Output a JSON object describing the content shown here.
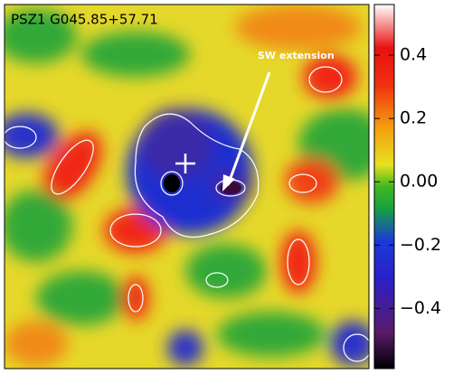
{
  "title": "PSZ1 G045.85+57.71",
  "annotation": "SW extension",
  "colorbar": {
    "lim": [
      -0.59,
      0.56
    ],
    "ticks": [
      {
        "value": -0.4,
        "label": "−0.4"
      },
      {
        "value": -0.2,
        "label": "−0.2"
      },
      {
        "value": 0,
        "label": "0.00"
      },
      0.2,
      0.4
    ]
  }
}
